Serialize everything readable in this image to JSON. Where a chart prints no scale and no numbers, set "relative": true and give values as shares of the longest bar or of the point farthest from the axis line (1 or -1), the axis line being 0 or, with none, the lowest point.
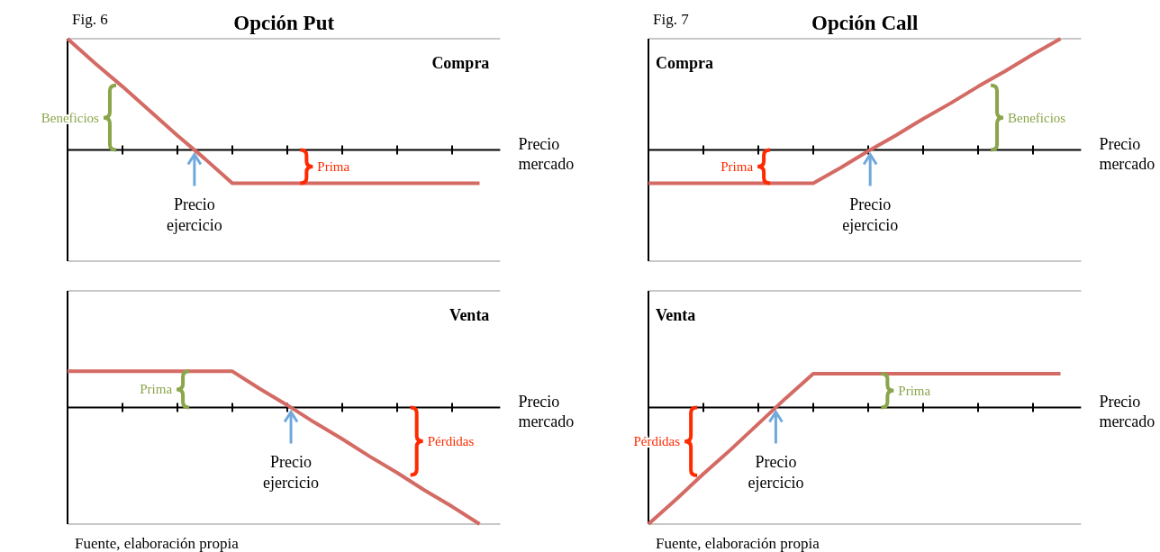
{
  "chart_data": [
    {
      "type": "line",
      "title": "Opción Put",
      "subtitle": "Compra",
      "xlabel": "Precio mercado",
      "relative": true,
      "categories": [
        null,
        null,
        null,
        null,
        null,
        null,
        null,
        null,
        null,
        null,
        null,
        null,
        null,
        null,
        null,
        null
      ],
      "series": [
        {
          "color": "#d46a64",
          "values": [
            1,
            0.78,
            0.57,
            0.35,
            0.13,
            -0.08,
            -0.3,
            -0.3,
            -0.3,
            -0.3,
            -0.3,
            -0.3,
            -0.3,
            -0.3,
            -0.3,
            -0.3
          ]
        }
      ],
      "annotations": [
        "Fig. 6",
        "Beneficios",
        {
          "text": "Prima",
          "y": -0.3
        },
        {
          "text": "Precio ejercicio",
          "y": 0
        }
      ]
    },
    {
      "type": "line",
      "subtitle": "Venta",
      "xlabel": "Precio mercado",
      "relative": true,
      "categories": [
        null,
        null,
        null,
        null,
        null,
        null,
        null,
        null,
        null,
        null,
        null,
        null,
        null,
        null,
        null,
        null
      ],
      "series": [
        {
          "color": "#d46a64",
          "values": [
            0.31,
            0.31,
            0.31,
            0.31,
            0.31,
            0.31,
            0.31,
            0.16,
            0.02,
            -0.13,
            -0.27,
            -0.42,
            -0.56,
            -0.71,
            -0.85,
            -1
          ]
        }
      ],
      "annotations": [
        "Fuente, elaboración propia",
        {
          "text": "Prima",
          "y": 0.31
        },
        "Pérdidas",
        {
          "text": "Precio ejercicio",
          "y": 0
        }
      ]
    },
    {
      "type": "line",
      "title": "Opción Call",
      "subtitle": "Compra",
      "xlabel": "Precio mercado",
      "relative": true,
      "categories": [
        null,
        null,
        null,
        null,
        null,
        null,
        null,
        null,
        null,
        null,
        null,
        null,
        null,
        null,
        null,
        null
      ],
      "series": [
        {
          "color": "#d46a64",
          "values": [
            -0.3,
            -0.3,
            -0.3,
            -0.3,
            -0.3,
            -0.3,
            -0.3,
            -0.16,
            -0.01,
            0.13,
            0.28,
            0.42,
            0.57,
            0.71,
            0.86,
            1
          ]
        }
      ],
      "annotations": [
        "Fig. 7",
        {
          "text": "Prima",
          "y": -0.3
        },
        "Beneficios",
        {
          "text": "Precio ejercicio",
          "y": 0
        }
      ]
    },
    {
      "type": "line",
      "subtitle": "Venta",
      "xlabel": "Precio mercado",
      "relative": true,
      "categories": [
        null,
        null,
        null,
        null,
        null,
        null,
        null,
        null,
        null,
        null,
        null,
        null,
        null,
        null,
        null,
        null
      ],
      "series": [
        {
          "color": "#d46a64",
          "values": [
            -1,
            -0.79,
            -0.57,
            -0.36,
            -0.14,
            0.08,
            0.29,
            0.29,
            0.29,
            0.29,
            0.29,
            0.29,
            0.29,
            0.29,
            0.29,
            0.29
          ]
        }
      ],
      "annotations": [
        "Fuente, elaboración propia",
        "Pérdidas",
        {
          "text": "Prima",
          "y": 0.29
        },
        {
          "text": "Precio ejercicio",
          "y": 0
        }
      ]
    }
  ]
}
